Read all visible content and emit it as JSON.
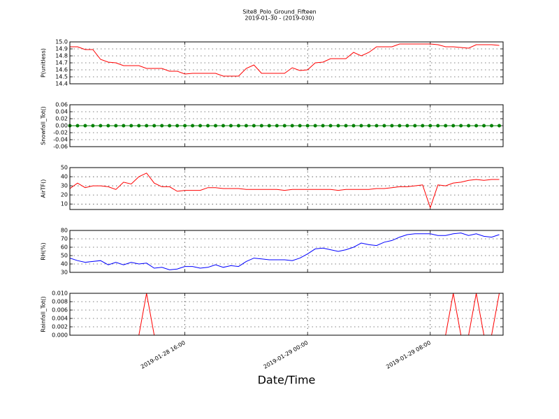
{
  "chart_data": {
    "type": "line",
    "title": "Site8_Polo_Ground_Fifteen",
    "subtitle": "2019-01-30 - (2019-030)",
    "xlabel": "Date/Time",
    "x": [
      "2019-01-28 08:30",
      "2019-01-28 09:00",
      "2019-01-28 09:30",
      "2019-01-28 10:00",
      "2019-01-28 10:30",
      "2019-01-28 11:00",
      "2019-01-28 11:30",
      "2019-01-28 12:00",
      "2019-01-28 12:30",
      "2019-01-28 13:00",
      "2019-01-28 13:30",
      "2019-01-28 14:00",
      "2019-01-28 14:30",
      "2019-01-28 15:00",
      "2019-01-28 15:30",
      "2019-01-28 16:00",
      "2019-01-28 16:30",
      "2019-01-28 17:00",
      "2019-01-28 17:30",
      "2019-01-28 18:00",
      "2019-01-28 18:30",
      "2019-01-28 19:00",
      "2019-01-28 19:30",
      "2019-01-28 20:00",
      "2019-01-28 20:30",
      "2019-01-28 21:00",
      "2019-01-28 21:30",
      "2019-01-28 22:00",
      "2019-01-28 22:30",
      "2019-01-28 23:00",
      "2019-01-28 23:30",
      "2019-01-29 00:00",
      "2019-01-29 00:30",
      "2019-01-29 01:00",
      "2019-01-29 01:30",
      "2019-01-29 02:00",
      "2019-01-29 02:30",
      "2019-01-29 03:00",
      "2019-01-29 03:30",
      "2019-01-29 04:00",
      "2019-01-29 04:30",
      "2019-01-29 05:00",
      "2019-01-29 05:30",
      "2019-01-29 06:00",
      "2019-01-29 06:30",
      "2019-01-29 07:00",
      "2019-01-29 07:30",
      "2019-01-29 08:00",
      "2019-01-29 08:30",
      "2019-01-29 09:00",
      "2019-01-29 09:30",
      "2019-01-29 10:00",
      "2019-01-29 10:30",
      "2019-01-29 11:00",
      "2019-01-29 11:30",
      "2019-01-29 12:00",
      "2019-01-29 12:30"
    ],
    "xlim": [
      "2019-01-28 08:30",
      "2019-01-29 12:45"
    ],
    "xticks": [
      "2019-01-28 16:00",
      "2019-01-29 00:00",
      "2019-01-29 08:00"
    ],
    "grid": true,
    "panels": [
      {
        "ylabel": "P(unitless)",
        "ylim": [
          14.4,
          15.0
        ],
        "yticks": [
          14.4,
          14.5,
          14.6,
          14.7,
          14.8,
          14.9,
          {
            "value": 15.0,
            "label": "15.0"
          }
        ],
        "series": [
          {
            "color": "#ff0000",
            "values": [
              14.93,
              14.93,
              14.89,
              14.89,
              14.75,
              14.71,
              14.7,
              14.66,
              14.66,
              14.66,
              14.62,
              14.62,
              14.62,
              14.58,
              14.58,
              14.54,
              14.55,
              14.55,
              14.55,
              14.55,
              14.51,
              14.51,
              14.51,
              14.62,
              14.67,
              14.55,
              14.55,
              14.55,
              14.55,
              14.63,
              14.59,
              14.6,
              14.7,
              14.71,
              14.76,
              14.76,
              14.76,
              14.85,
              14.8,
              14.85,
              14.93,
              14.93,
              14.93,
              14.97,
              14.97,
              14.97,
              14.97,
              14.97,
              14.96,
              14.93,
              14.93,
              14.92,
              14.91,
              14.96,
              14.96,
              14.96,
              14.95
            ]
          }
        ]
      },
      {
        "ylabel": "Snowfall_Tot()",
        "ylim": [
          -0.06,
          0.06
        ],
        "yticks": [
          -0.06,
          -0.04,
          -0.02,
          {
            "value": 0,
            "label": "0.00"
          },
          0.02,
          0.04,
          0.06
        ],
        "series": [
          {
            "color": "#008000",
            "markers": true,
            "values": [
              0,
              0,
              0,
              0,
              0,
              0,
              0,
              0,
              0,
              0,
              0,
              0,
              0,
              0,
              0,
              0,
              0,
              0,
              0,
              0,
              0,
              0,
              0,
              0,
              0,
              0,
              0,
              0,
              0,
              0,
              0,
              0,
              0,
              0,
              0,
              0,
              0,
              0,
              0,
              0,
              0,
              0,
              0,
              0,
              0,
              0,
              0,
              0,
              0,
              0,
              0,
              0,
              0,
              0,
              0,
              0,
              0
            ]
          }
        ]
      },
      {
        "ylabel": "AirTF()",
        "ylim": [
          4,
          50
        ],
        "yticks": [
          10,
          20,
          30,
          40,
          50
        ],
        "series": [
          {
            "color": "#ff0000",
            "values": [
              27,
              33,
              28,
              30,
              30,
              29,
              26,
              34,
              32,
              40,
              44,
              33,
              29,
              29,
              24,
              25,
              25,
              25,
              28,
              28,
              27,
              27,
              27,
              26,
              26,
              26,
              26,
              26,
              25,
              26,
              26,
              26,
              26,
              26,
              26,
              25,
              26,
              26,
              26,
              26,
              27,
              27,
              28,
              29,
              29,
              30,
              31,
              6,
              31,
              30,
              33,
              34,
              36,
              37,
              36,
              37,
              37
            ]
          }
        ]
      },
      {
        "ylabel": "RH(%)",
        "ylim": [
          30,
          80
        ],
        "yticks": [
          30,
          40,
          50,
          60,
          70,
          80
        ],
        "series": [
          {
            "color": "#0000ff",
            "values": [
              47,
              44,
              42,
              43,
              44,
              39,
              42,
              39,
              42,
              40,
              41,
              35,
              36,
              33,
              34,
              37,
              37,
              35,
              36,
              39,
              36,
              38,
              37,
              43,
              47,
              46,
              45,
              45,
              45,
              44,
              47,
              52,
              58,
              59,
              57,
              55,
              57,
              60,
              65,
              63,
              62,
              66,
              68,
              72,
              75,
              76,
              76,
              76,
              74,
              74,
              76,
              77,
              74,
              76,
              73,
              72,
              75
            ]
          }
        ]
      },
      {
        "ylabel": "Rainfall_Tot()",
        "ylim": [
          0,
          0.01
        ],
        "yticks": [
          {
            "value": 0,
            "label": "0.000"
          },
          0.002,
          0.004,
          0.006,
          0.008,
          {
            "value": 0.01,
            "label": "0.010"
          }
        ],
        "series": [
          {
            "color": "#ff0000",
            "values": [
              0,
              0,
              0,
              0,
              0,
              0,
              0,
              0,
              0,
              0,
              0.01,
              0,
              0,
              0,
              0,
              0,
              0,
              0,
              0,
              0,
              0,
              0,
              0,
              0,
              0,
              0,
              0,
              0,
              0,
              0,
              0,
              0,
              0,
              0,
              0,
              0,
              0,
              0,
              0,
              0,
              0,
              0,
              0,
              0,
              0,
              0,
              0,
              0,
              0,
              0,
              0.01,
              0,
              0,
              0.01,
              0,
              0,
              0.01
            ]
          }
        ]
      }
    ]
  }
}
